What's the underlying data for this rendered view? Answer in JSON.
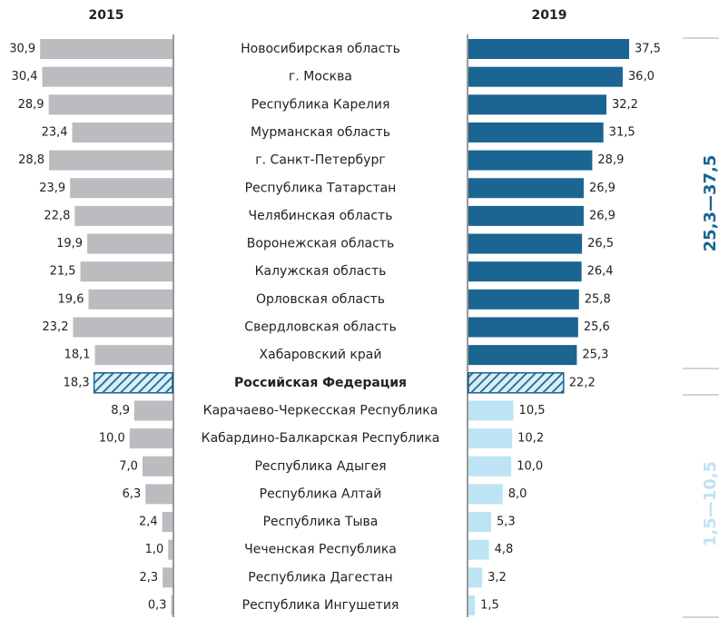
{
  "chart_data": {
    "type": "butterfly-bar",
    "categories": [
      "Новосибирская область",
      "г. Москва",
      "Республика Карелия",
      "Мурманская область",
      "г. Санкт-Петербург",
      "Республика Татарстан",
      "Челябинская область",
      "Воронежская область",
      "Калужская область",
      "Орловская область",
      "Свердловская область",
      "Хабаровский край",
      "Российская Федерация",
      "Карачаево-Черкесская Республика",
      "Кабардино-Балкарская Республика",
      "Республика Адыгея",
      "Республика Алтай",
      "Республика Тыва",
      "Чеченская Республика",
      "Республика Дагестан",
      "Республика Ингушетия"
    ],
    "highlight": 12,
    "series": [
      {
        "name": "2015",
        "color": "#bbbcc0",
        "values": [
          30.9,
          30.4,
          28.9,
          23.4,
          28.8,
          23.9,
          22.8,
          19.9,
          21.5,
          19.6,
          23.2,
          18.1,
          18.3,
          8.9,
          10.0,
          7.0,
          6.3,
          2.4,
          1.0,
          2.3,
          0.3
        ],
        "value_labels": [
          "30,9",
          "30,4",
          "28,9",
          "23,4",
          "28,8",
          "23,9",
          "22,8",
          "19,9",
          "21,5",
          "19,6",
          "23,2",
          "18,1",
          "18,3",
          "8,9",
          "10,0",
          "7,0",
          "6,3",
          "2,4",
          "1,0",
          "2,3",
          "0,3"
        ]
      },
      {
        "name": "2019",
        "colors": [
          "#1b6592",
          "#1b6592",
          "#1b6592",
          "#1b6592",
          "#1b6592",
          "#1b6592",
          "#1b6592",
          "#1b6592",
          "#1b6592",
          "#1b6592",
          "#1b6592",
          "#1b6592",
          "#1b6592",
          "#bde4f4",
          "#bde4f4",
          "#bde4f4",
          "#bde4f4",
          "#bde4f4",
          "#bde4f4",
          "#bde4f4",
          "#bde4f4"
        ],
        "values": [
          37.5,
          36.0,
          32.2,
          31.5,
          28.9,
          26.9,
          26.9,
          26.5,
          26.4,
          25.8,
          25.6,
          25.3,
          22.2,
          10.5,
          10.2,
          10.0,
          8.0,
          5.3,
          4.8,
          3.2,
          1.5
        ],
        "value_labels": [
          "37,5",
          "36,0",
          "32,2",
          "31,5",
          "28,9",
          "26,9",
          "26,9",
          "26,5",
          "26,4",
          "25,8",
          "25,6",
          "25,3",
          "22,2",
          "10,5",
          "10,2",
          "10,0",
          "8,0",
          "5,3",
          "4,8",
          "3,2",
          "1,5"
        ]
      }
    ],
    "annotations": [
      {
        "text": "25,3—37,5",
        "color": "#1b6592"
      },
      {
        "text": "1,5—10,5",
        "color": "#bde4f4"
      }
    ]
  }
}
